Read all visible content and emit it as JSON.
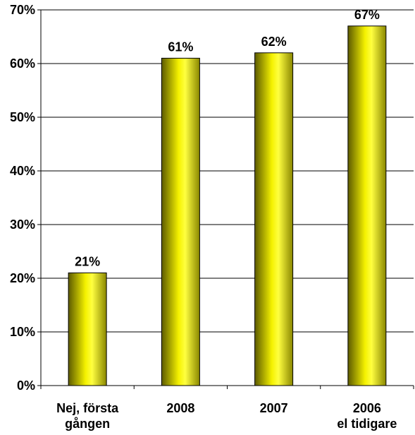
{
  "chart_data": {
    "type": "bar",
    "categories": [
      [
        "Nej, första",
        "gången"
      ],
      [
        "2008"
      ],
      [
        "2007"
      ],
      [
        "2006",
        "el tidigare"
      ]
    ],
    "values": [
      21,
      61,
      62,
      67
    ],
    "data_labels": [
      "21%",
      "61%",
      "62%",
      "67%"
    ],
    "yticks": [
      "0%",
      "10%",
      "20%",
      "30%",
      "40%",
      "50%",
      "60%",
      "70%"
    ],
    "ylim": [
      0,
      70
    ],
    "grid": true,
    "legend": "none",
    "title": "",
    "xlabel": "",
    "ylabel": ""
  },
  "colors": {
    "bar_dark": "#5c5a00",
    "bar_mid": "#b5b200",
    "bar_light": "#ffff33",
    "grid": "#000000"
  }
}
